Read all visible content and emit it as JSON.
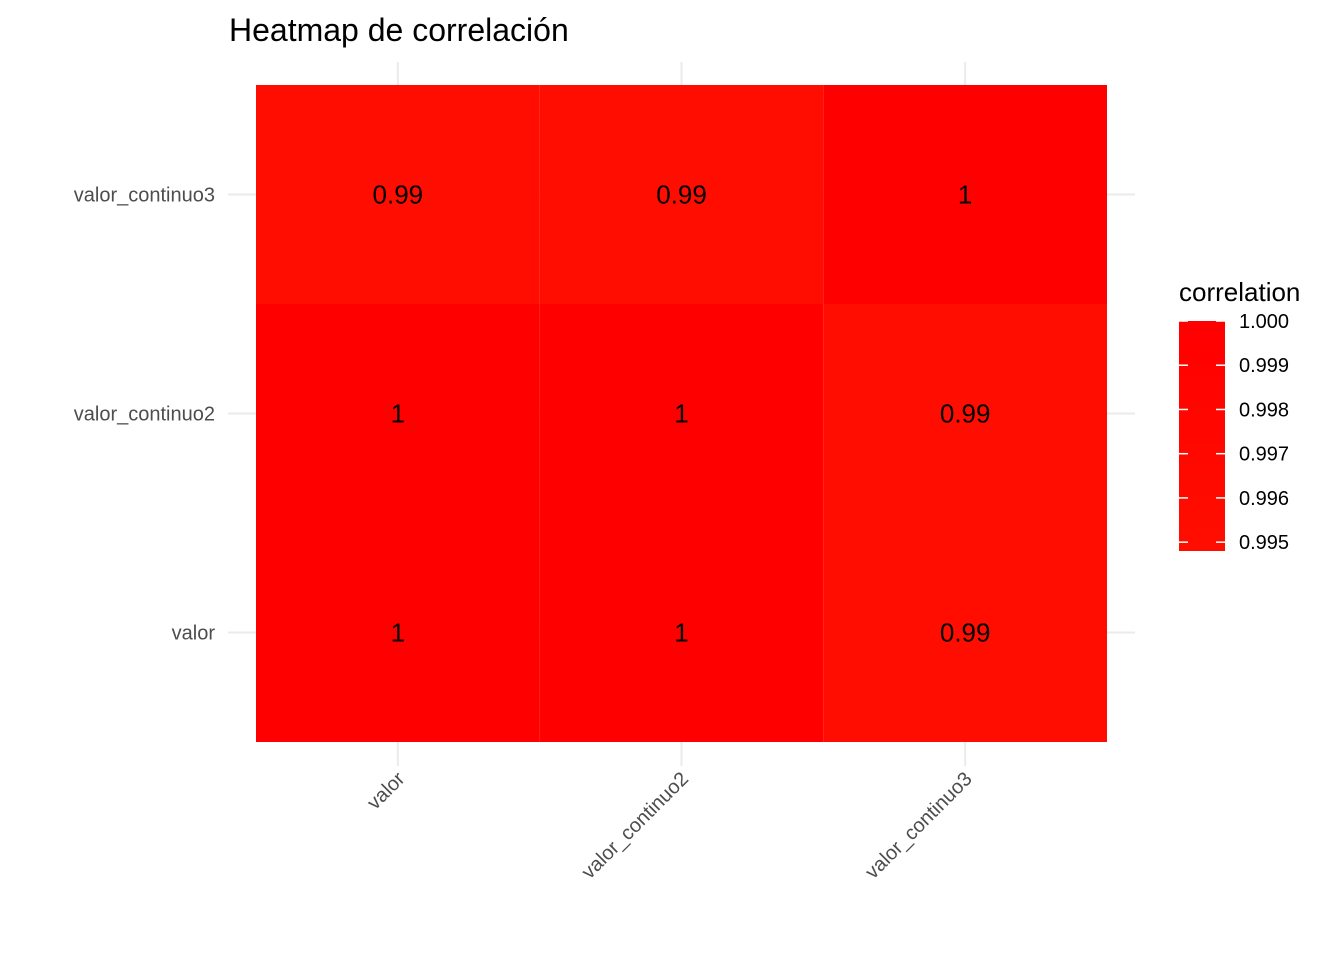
{
  "chart_data": {
    "type": "heatmap",
    "title": "Heatmap de correlación",
    "xlabel": "",
    "ylabel": "",
    "x_categories": [
      "valor",
      "valor_continuo2",
      "valor_continuo3"
    ],
    "y_categories": [
      "valor",
      "valor_continuo2",
      "valor_continuo3"
    ],
    "cells": [
      {
        "x": "valor",
        "y": "valor",
        "value": 1.0,
        "label": "1"
      },
      {
        "x": "valor_continuo2",
        "y": "valor",
        "value": 1.0,
        "label": "1"
      },
      {
        "x": "valor_continuo3",
        "y": "valor",
        "value": 0.995,
        "label": "0.99"
      },
      {
        "x": "valor",
        "y": "valor_continuo2",
        "value": 1.0,
        "label": "1"
      },
      {
        "x": "valor_continuo2",
        "y": "valor_continuo2",
        "value": 1.0,
        "label": "1"
      },
      {
        "x": "valor_continuo3",
        "y": "valor_continuo2",
        "value": 0.995,
        "label": "0.99"
      },
      {
        "x": "valor",
        "y": "valor_continuo3",
        "value": 0.995,
        "label": "0.99"
      },
      {
        "x": "valor_continuo2",
        "y": "valor_continuo3",
        "value": 0.995,
        "label": "0.99"
      },
      {
        "x": "valor_continuo3",
        "y": "valor_continuo3",
        "value": 1.0,
        "label": "1"
      }
    ],
    "legend": {
      "title": "correlation",
      "ticks": [
        "1.000",
        "0.999",
        "0.998",
        "0.997",
        "0.996",
        "0.995"
      ],
      "tick_values": [
        1.0,
        0.999,
        0.998,
        0.997,
        0.996,
        0.995
      ],
      "range": [
        0.9948,
        1.0
      ],
      "placement": "right"
    },
    "colors": {
      "low": "#ff0e00",
      "high": "#ff0000",
      "grid": "#ebebeb"
    },
    "grid": true
  }
}
